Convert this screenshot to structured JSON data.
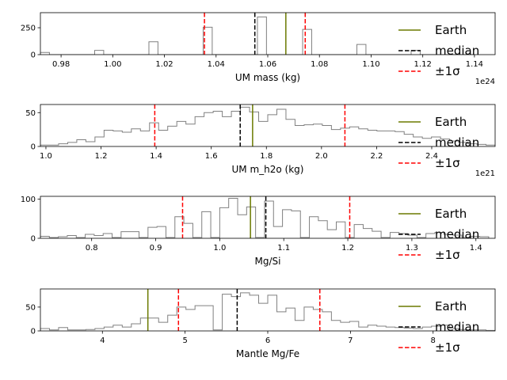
{
  "legend_colors": {
    "earth": "#6b7a00",
    "median": "#000000",
    "sigma": "#ff0000",
    "hist": "#808080"
  },
  "chart_data": [
    {
      "type": "histogram",
      "xlabel": "UM mass (kg)",
      "offset_text": "1e24",
      "xlim": [
        0.972,
        1.148
      ],
      "ylim": [
        0,
        390
      ],
      "xticks": [
        0.98,
        1.0,
        1.02,
        1.04,
        1.06,
        1.08,
        1.1,
        1.12,
        1.14
      ],
      "xtick_labels": [
        "0.98",
        "1.00",
        "1.02",
        "1.04",
        "1.06",
        "1.08",
        "1.10",
        "1.12",
        "1.14"
      ],
      "yticks": [
        0,
        250
      ],
      "ytick_labels": [
        "0",
        "250"
      ],
      "bin_edges": [
        0.972,
        0.9755,
        0.979,
        0.9825,
        0.986,
        0.9895,
        0.993,
        0.9965,
        1.0,
        1.0035,
        1.007,
        1.0105,
        1.014,
        1.0175,
        1.021,
        1.0245,
        1.028,
        1.0315,
        1.035,
        1.0385,
        1.042,
        1.0455,
        1.049,
        1.0525,
        1.056,
        1.0595,
        1.063,
        1.0665,
        1.07,
        1.0735,
        1.077,
        1.0805,
        1.084,
        1.0875,
        1.091,
        1.0945,
        1.098,
        1.1015,
        1.105,
        1.1085,
        1.112,
        1.1155,
        1.119,
        1.1225,
        1.126,
        1.1295,
        1.133,
        1.1365,
        1.14
      ],
      "counts": [
        20,
        0,
        0,
        0,
        0,
        0,
        40,
        0,
        0,
        0,
        0,
        0,
        120,
        0,
        0,
        0,
        0,
        0,
        255,
        0,
        0,
        0,
        0,
        0,
        350,
        0,
        0,
        0,
        0,
        235,
        0,
        0,
        0,
        0,
        0,
        95,
        0,
        0,
        0,
        0,
        0,
        40,
        0,
        0,
        0,
        0,
        0,
        0
      ],
      "earth": 1.067,
      "median": 1.055,
      "sigma": [
        1.0355,
        1.0745
      ],
      "legend": [
        "Earth",
        "median",
        "±1σ"
      ]
    },
    {
      "type": "histogram",
      "xlabel": "UM m_h2o (kg)",
      "offset_text": "1e21",
      "xlim": [
        0.98,
        2.63
      ],
      "ylim": [
        0,
        62
      ],
      "xticks": [
        1.0,
        1.2,
        1.4,
        1.6,
        1.8,
        2.0,
        2.2,
        2.4
      ],
      "xtick_labels": [
        "1.0",
        "1.2",
        "1.4",
        "1.6",
        "1.8",
        "2.0",
        "2.2",
        "2.4"
      ],
      "yticks": [
        0,
        50
      ],
      "ytick_labels": [
        "0",
        "50"
      ],
      "bin_edges": [
        0.98,
        1.013,
        1.046,
        1.079,
        1.112,
        1.145,
        1.178,
        1.211,
        1.244,
        1.277,
        1.31,
        1.343,
        1.376,
        1.409,
        1.442,
        1.475,
        1.508,
        1.541,
        1.574,
        1.607,
        1.64,
        1.673,
        1.706,
        1.739,
        1.772,
        1.805,
        1.838,
        1.871,
        1.904,
        1.937,
        1.97,
        2.003,
        2.036,
        2.069,
        2.102,
        2.135,
        2.168,
        2.201,
        2.234,
        2.267,
        2.3,
        2.333,
        2.366,
        2.399,
        2.432,
        2.465,
        2.498,
        2.531,
        2.564,
        2.597,
        2.63
      ],
      "counts": [
        2,
        2,
        4,
        6,
        10,
        7,
        14,
        24,
        23,
        21,
        26,
        23,
        35,
        24,
        30,
        37,
        33,
        44,
        50,
        52,
        44,
        52,
        58,
        51,
        37,
        47,
        55,
        40,
        31,
        32,
        33,
        31,
        25,
        27,
        29,
        26,
        24,
        23,
        23,
        22,
        18,
        14,
        12,
        14,
        11,
        8,
        6,
        4,
        3,
        2
      ],
      "earth": 1.75,
      "median": 1.705,
      "sigma": [
        1.395,
        2.085
      ],
      "legend": [
        "Earth",
        "median",
        "±1σ"
      ]
    },
    {
      "type": "histogram",
      "xlabel": "Mg/Si",
      "offset_text": "",
      "xlim": [
        0.72,
        1.43
      ],
      "ylim": [
        0,
        107
      ],
      "xticks": [
        0.8,
        0.9,
        1.0,
        1.1,
        1.2,
        1.3,
        1.4
      ],
      "xtick_labels": [
        "0.8",
        "0.9",
        "1.0",
        "1.1",
        "1.2",
        "1.3",
        "1.4"
      ],
      "yticks": [
        0,
        100
      ],
      "ytick_labels": [
        "0",
        "100"
      ],
      "bin_edges": [
        0.72,
        0.734,
        0.748,
        0.762,
        0.776,
        0.79,
        0.804,
        0.818,
        0.832,
        0.846,
        0.86,
        0.874,
        0.888,
        0.902,
        0.916,
        0.93,
        0.944,
        0.958,
        0.972,
        0.986,
        1.0,
        1.014,
        1.028,
        1.042,
        1.056,
        1.07,
        1.084,
        1.098,
        1.112,
        1.126,
        1.14,
        1.154,
        1.168,
        1.182,
        1.196,
        1.21,
        1.224,
        1.238,
        1.252,
        1.266,
        1.28,
        1.294,
        1.308,
        1.322,
        1.336,
        1.35,
        1.364,
        1.378,
        1.392,
        1.406,
        1.42
      ],
      "counts": [
        5,
        2,
        4,
        7,
        2,
        10,
        7,
        12,
        2,
        17,
        17,
        2,
        28,
        30,
        2,
        55,
        38,
        2,
        68,
        2,
        78,
        102,
        60,
        80,
        2,
        95,
        30,
        73,
        70,
        2,
        55,
        45,
        22,
        42,
        2,
        35,
        25,
        18,
        2,
        15,
        12,
        8,
        2,
        12,
        15,
        10,
        8,
        2,
        5,
        4
      ],
      "earth": 1.048,
      "median": 1.072,
      "sigma": [
        0.942,
        1.203
      ],
      "legend": [
        "Earth",
        "median",
        "±1σ"
      ]
    },
    {
      "type": "histogram",
      "xlabel": "Mantle Mg/Fe",
      "offset_text": "",
      "xlim": [
        3.25,
        8.75
      ],
      "ylim": [
        0,
        88
      ],
      "xticks": [
        4,
        5,
        6,
        7,
        8
      ],
      "xtick_labels": [
        "4",
        "5",
        "6",
        "7",
        "8"
      ],
      "yticks": [
        0,
        50
      ],
      "ytick_labels": [
        "0",
        "50"
      ],
      "bin_edges": [
        3.25,
        3.36,
        3.47,
        3.58,
        3.69,
        3.8,
        3.91,
        4.02,
        4.13,
        4.24,
        4.35,
        4.46,
        4.57,
        4.68,
        4.79,
        4.9,
        5.01,
        5.12,
        5.23,
        5.34,
        5.45,
        5.56,
        5.67,
        5.78,
        5.89,
        6.0,
        6.11,
        6.22,
        6.33,
        6.44,
        6.55,
        6.66,
        6.77,
        6.88,
        6.99,
        7.1,
        7.21,
        7.32,
        7.43,
        7.54,
        7.65,
        7.76,
        7.87,
        7.98,
        8.09,
        8.2,
        8.31,
        8.42,
        8.53,
        8.64,
        8.75
      ],
      "counts": [
        5,
        2,
        7,
        2,
        2,
        3,
        5,
        8,
        12,
        8,
        15,
        27,
        27,
        18,
        33,
        50,
        45,
        53,
        53,
        2,
        77,
        72,
        80,
        75,
        58,
        75,
        40,
        48,
        22,
        50,
        45,
        40,
        22,
        18,
        20,
        8,
        12,
        10,
        8,
        7,
        6,
        5,
        8,
        10,
        12,
        5,
        3,
        2,
        2,
        1
      ],
      "earth": 4.55,
      "median": 5.63,
      "sigma": [
        4.92,
        6.63
      ],
      "legend": [
        "Earth",
        "median",
        "±1σ"
      ]
    }
  ]
}
